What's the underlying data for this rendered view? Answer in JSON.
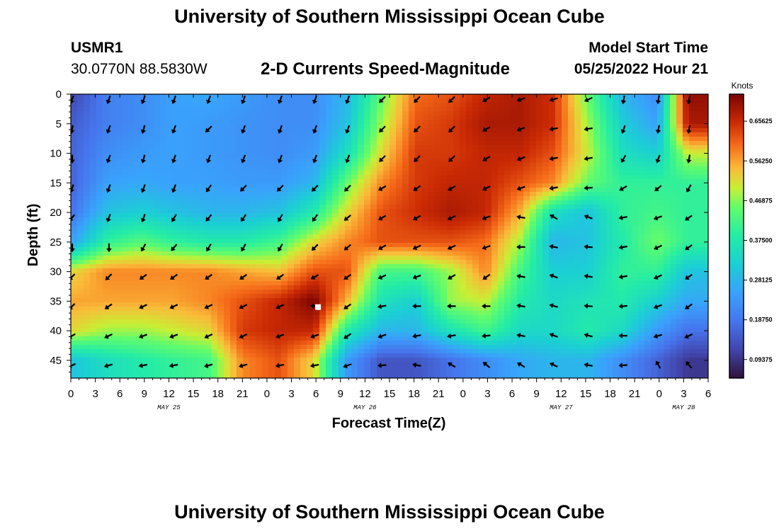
{
  "header": {
    "title": "University of Southern Mississippi Ocean Cube",
    "station_id": "USMR1",
    "station_location": "30.0770N  88.5830W",
    "product": "2-D Currents Speed-Magnitude",
    "model_label": "Model Start Time",
    "model_time": "05/25/2022 Hour 21"
  },
  "footer": {
    "title": "University of Southern Mississippi Ocean Cube"
  },
  "chart_data": {
    "type": "heatmap",
    "title": "2-D Currents Speed-Magnitude",
    "xlabel": "Forecast Time(Z)",
    "ylabel": "Depth (ft)",
    "units": "Knots",
    "x_range_hours": [
      0,
      78
    ],
    "ylim": [
      0,
      48
    ],
    "x_tick_labels": [
      "0",
      "3",
      "6",
      "9",
      "12",
      "15",
      "18",
      "21",
      "0",
      "3",
      "6",
      "9",
      "12",
      "15",
      "18",
      "21",
      "0",
      "3",
      "6",
      "9",
      "12",
      "15",
      "18",
      "21",
      "0",
      "3",
      "6"
    ],
    "day_labels": [
      {
        "label": "MAY 25",
        "hour": 12
      },
      {
        "label": "MAY 26",
        "hour": 36
      },
      {
        "label": "MAY 27",
        "hour": 60
      },
      {
        "label": "MAY 28",
        "hour": 75
      }
    ],
    "y_ticks": [
      0,
      5,
      10,
      15,
      20,
      25,
      30,
      35,
      40,
      45
    ],
    "colorbar": {
      "label": "Knots",
      "min": 0.05,
      "max": 0.72,
      "ticks": [
        "0.09375",
        "0.18750",
        "0.28125",
        "0.37500",
        "0.46875",
        "0.56250",
        "0.65625"
      ],
      "tick_values": [
        0.09375,
        0.1875,
        0.28125,
        0.375,
        0.46875,
        0.5625,
        0.65625
      ]
    },
    "depths_ft": [
      0,
      5,
      10,
      15,
      20,
      25,
      30,
      35,
      40,
      45
    ],
    "column_hours": [
      0,
      4.5,
      8.75,
      12.5,
      16.75,
      21,
      25.5,
      29.75,
      33.75,
      38,
      42.25,
      46.5,
      50.75,
      55,
      59,
      63.25,
      67.5,
      71.75,
      75.5
    ],
    "speed_knots": [
      [
        0.12,
        0.2,
        0.22,
        0.25,
        0.26,
        0.24,
        0.22,
        0.22,
        0.28,
        0.45,
        0.6,
        0.62,
        0.66,
        0.68,
        0.65,
        0.45,
        0.28,
        0.22,
        0.7
      ],
      [
        0.15,
        0.2,
        0.22,
        0.25,
        0.24,
        0.23,
        0.22,
        0.22,
        0.3,
        0.48,
        0.62,
        0.64,
        0.68,
        0.68,
        0.65,
        0.48,
        0.32,
        0.25,
        0.68
      ],
      [
        0.16,
        0.22,
        0.24,
        0.25,
        0.24,
        0.23,
        0.22,
        0.24,
        0.35,
        0.52,
        0.64,
        0.64,
        0.66,
        0.66,
        0.62,
        0.5,
        0.35,
        0.32,
        0.5
      ],
      [
        0.16,
        0.25,
        0.26,
        0.25,
        0.25,
        0.24,
        0.24,
        0.28,
        0.45,
        0.58,
        0.64,
        0.66,
        0.66,
        0.62,
        0.58,
        0.45,
        0.4,
        0.4,
        0.4
      ],
      [
        0.18,
        0.3,
        0.32,
        0.3,
        0.28,
        0.28,
        0.3,
        0.38,
        0.52,
        0.62,
        0.65,
        0.68,
        0.66,
        0.55,
        0.35,
        0.3,
        0.4,
        0.42,
        0.4
      ],
      [
        0.25,
        0.4,
        0.44,
        0.4,
        0.38,
        0.38,
        0.42,
        0.52,
        0.58,
        0.62,
        0.62,
        0.62,
        0.6,
        0.48,
        0.28,
        0.3,
        0.38,
        0.46,
        0.4
      ],
      [
        0.52,
        0.58,
        0.58,
        0.58,
        0.58,
        0.56,
        0.54,
        0.62,
        0.62,
        0.42,
        0.42,
        0.48,
        0.58,
        0.42,
        0.32,
        0.32,
        0.4,
        0.4,
        0.3
      ],
      [
        0.56,
        0.56,
        0.56,
        0.56,
        0.58,
        0.62,
        0.66,
        0.72,
        0.55,
        0.36,
        0.32,
        0.48,
        0.5,
        0.38,
        0.34,
        0.36,
        0.38,
        0.32,
        0.26
      ],
      [
        0.52,
        0.48,
        0.48,
        0.5,
        0.52,
        0.64,
        0.66,
        0.66,
        0.38,
        0.28,
        0.28,
        0.36,
        0.42,
        0.34,
        0.34,
        0.38,
        0.34,
        0.24,
        0.18
      ],
      [
        0.3,
        0.35,
        0.38,
        0.4,
        0.42,
        0.58,
        0.62,
        0.52,
        0.24,
        0.14,
        0.14,
        0.18,
        0.22,
        0.26,
        0.28,
        0.28,
        0.22,
        0.16,
        0.1
      ]
    ],
    "arrow_direction_deg": [
      [
        200,
        200,
        200,
        200,
        200,
        200,
        200,
        200,
        200,
        225,
        225,
        225,
        240,
        250,
        255,
        245,
        190,
        190,
        190
      ],
      [
        190,
        200,
        195,
        200,
        225,
        200,
        200,
        200,
        200,
        225,
        225,
        225,
        240,
        250,
        260,
        260,
        200,
        190,
        190
      ],
      [
        180,
        200,
        195,
        200,
        200,
        200,
        200,
        200,
        200,
        225,
        225,
        225,
        240,
        250,
        260,
        260,
        210,
        200,
        190
      ],
      [
        200,
        200,
        200,
        200,
        215,
        225,
        225,
        225,
        225,
        240,
        235,
        240,
        245,
        250,
        260,
        265,
        240,
        230,
        210
      ],
      [
        220,
        200,
        200,
        210,
        220,
        215,
        210,
        215,
        230,
        240,
        240,
        245,
        250,
        280,
        300,
        290,
        260,
        250,
        235
      ],
      [
        180,
        180,
        210,
        220,
        210,
        210,
        210,
        225,
        230,
        240,
        245,
        245,
        250,
        270,
        280,
        275,
        260,
        245,
        235
      ],
      [
        225,
        225,
        235,
        235,
        235,
        235,
        235,
        240,
        235,
        245,
        250,
        240,
        235,
        280,
        290,
        280,
        260,
        245,
        235
      ],
      [
        225,
        235,
        245,
        245,
        245,
        245,
        245,
        275,
        235,
        260,
        270,
        270,
        270,
        280,
        285,
        275,
        265,
        250,
        235
      ],
      [
        240,
        245,
        250,
        250,
        245,
        245,
        250,
        250,
        235,
        250,
        260,
        260,
        265,
        280,
        290,
        285,
        270,
        255,
        245
      ],
      [
        245,
        255,
        260,
        260,
        255,
        255,
        260,
        260,
        250,
        265,
        280,
        300,
        310,
        300,
        295,
        280,
        265,
        330,
        320
      ]
    ],
    "marker": {
      "hour": 30.25,
      "depth_ft": 36
    }
  }
}
